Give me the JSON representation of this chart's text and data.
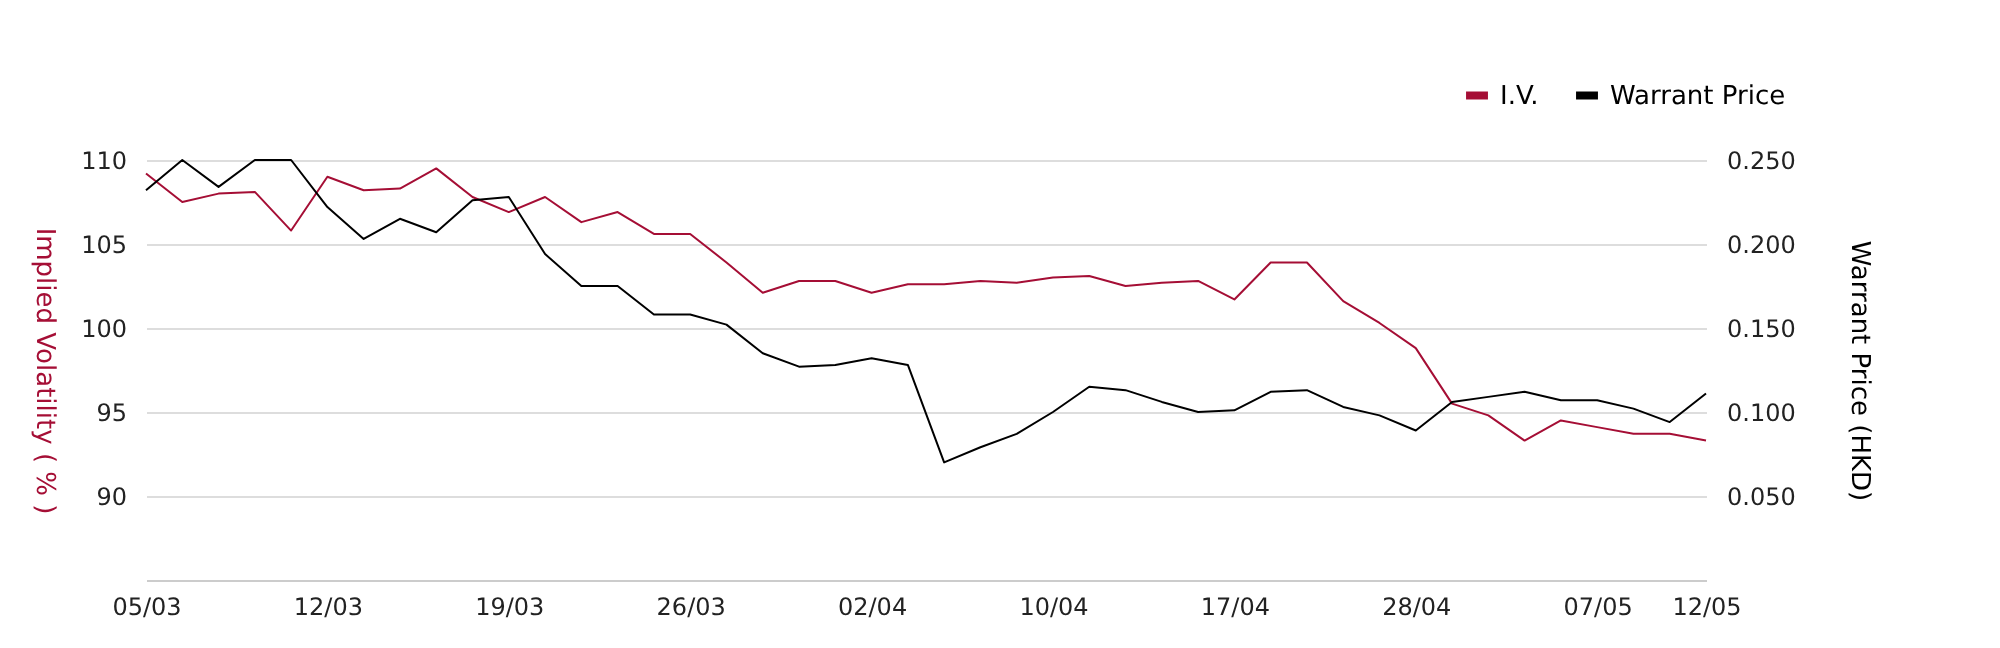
{
  "chart_data": {
    "type": "line",
    "xlabel": null,
    "ylabel": "Implied Volatility ( % )",
    "y2label": "Warrant Price (HKD)",
    "categories": [
      "05/03",
      null,
      null,
      null,
      null,
      "12/03",
      null,
      null,
      null,
      null,
      "19/03",
      null,
      null,
      null,
      null,
      "26/03",
      null,
      null,
      null,
      null,
      "02/04",
      null,
      null,
      null,
      null,
      "10/04",
      null,
      null,
      null,
      null,
      "17/04",
      null,
      null,
      null,
      null,
      "28/04",
      null,
      null,
      null,
      null,
      "07/05",
      null,
      null,
      "12/05"
    ],
    "series": [
      {
        "name": "I.V.",
        "color": "#a50e35",
        "values": [
          109.2,
          107.5,
          108.0,
          108.1,
          105.8,
          109.0,
          108.2,
          108.3,
          109.5,
          107.8,
          106.9,
          107.8,
          106.3,
          106.9,
          105.6,
          105.6,
          103.9,
          102.1,
          102.8,
          102.8,
          102.1,
          102.6,
          102.6,
          102.8,
          102.7,
          103.0,
          103.1,
          102.5,
          102.7,
          102.8,
          101.7,
          103.9,
          103.9,
          101.6,
          100.3,
          98.8,
          95.5,
          94.8,
          93.3,
          94.5,
          94.1,
          93.7,
          93.7,
          93.3
        ]
      },
      {
        "name": "Warrant Price",
        "color": "#000000",
        "axis": "y2",
        "values": [
          0.232,
          0.25,
          0.234,
          0.25,
          0.25,
          0.222,
          0.203,
          0.215,
          0.207,
          0.226,
          0.228,
          0.194,
          0.175,
          0.175,
          0.158,
          0.158,
          0.152,
          0.135,
          0.127,
          0.128,
          0.132,
          0.128,
          0.07,
          0.079,
          0.087,
          0.1,
          0.115,
          0.113,
          0.106,
          0.1,
          0.101,
          0.112,
          0.113,
          0.103,
          0.098,
          0.089,
          0.106,
          0.109,
          0.112,
          0.107,
          0.107,
          0.102,
          0.094,
          0.111
        ]
      }
    ],
    "ylim": [
      85,
      110
    ],
    "yticks": [
      90,
      95,
      100,
      105,
      110
    ],
    "y2lim": [
      0,
      0.25
    ],
    "y2ticks": [
      {
        "value": 0.05,
        "label": "0.050"
      },
      {
        "value": 0.1,
        "label": "0.100"
      },
      {
        "value": 0.15,
        "label": "0.150"
      },
      {
        "value": 0.2,
        "label": "0.200"
      },
      {
        "value": 0.25,
        "label": "0.250"
      }
    ],
    "grid": "y",
    "legend": "top right",
    "marker": "none",
    "line_style": "solid"
  }
}
